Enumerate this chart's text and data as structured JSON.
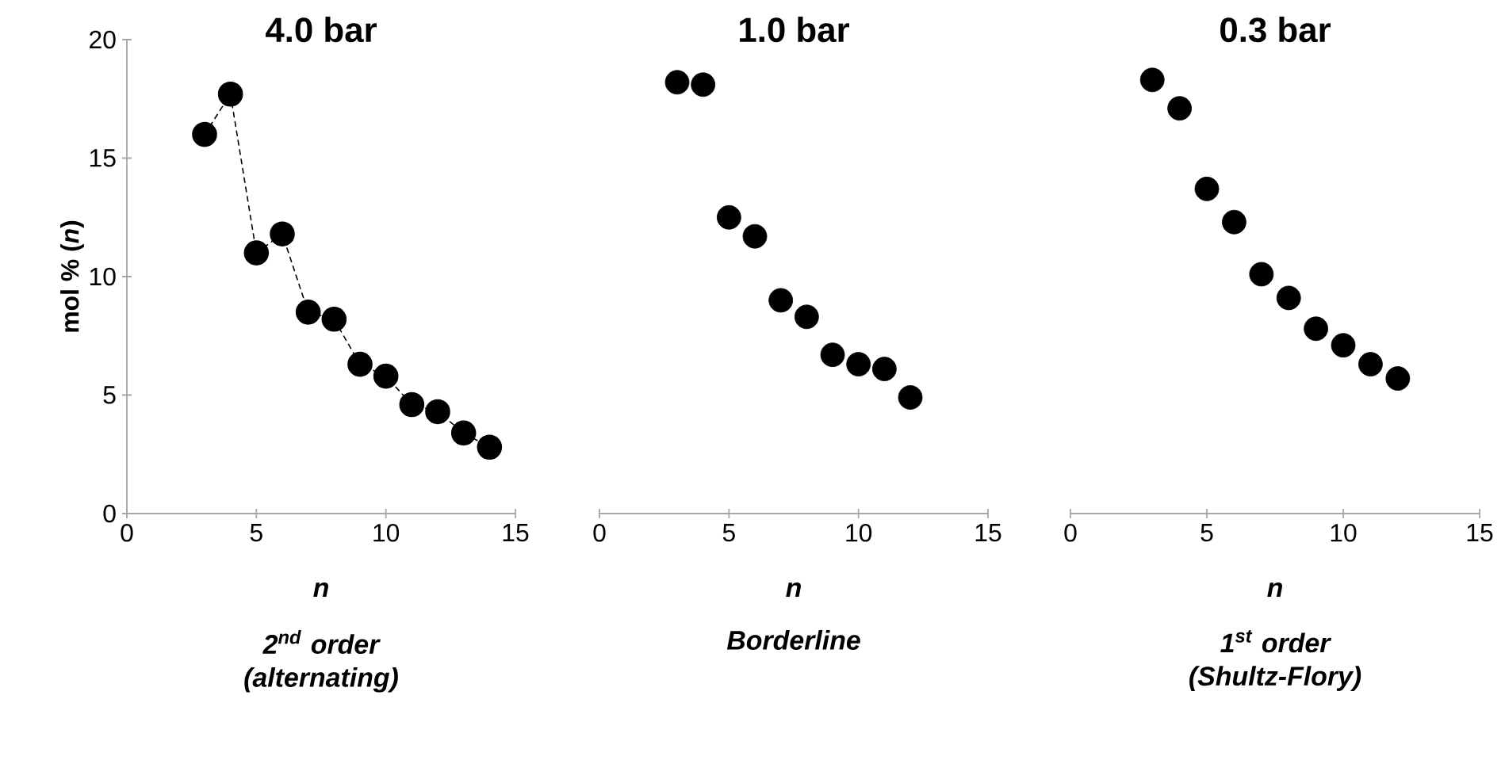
{
  "chart_data": [
    {
      "type": "line",
      "title": "4.0 bar",
      "xlabel": "n",
      "ylabel": "mol % (*n*)",
      "annotations": [
        "2$^{nd}$ order (alternating)"
      ],
      "x": [
        3,
        4,
        5,
        6,
        7,
        8,
        9,
        10,
        11,
        12,
        13,
        14
      ],
      "series": [
        {
          "color": "#000000",
          "values": [
            16.0,
            17.7,
            11.0,
            11.8,
            8.5,
            8.2,
            6.3,
            5.8,
            4.6,
            4.3,
            3.4,
            2.8
          ]
        }
      ],
      "xlim": [
        0,
        15
      ],
      "ylim": [
        0,
        20
      ],
      "xticks": [
        0,
        5,
        10,
        15
      ],
      "yticks": [
        0,
        5,
        10,
        15,
        20
      ],
      "marker": "circle",
      "line_style": "dashed"
    },
    {
      "type": "scatter",
      "title": "1.0 bar",
      "xlabel": "n",
      "annotations": [
        "Borderline"
      ],
      "x": [
        3,
        4,
        5,
        6,
        7,
        8,
        9,
        10,
        11,
        12
      ],
      "series": [
        {
          "color": "#000000",
          "values": [
            18.2,
            18.1,
            12.5,
            11.7,
            9.0,
            8.3,
            6.7,
            6.3,
            6.1,
            4.9
          ]
        }
      ],
      "xlim": [
        0,
        15
      ],
      "ylim": [
        0,
        20
      ],
      "xticks": [
        0,
        5,
        10,
        15
      ],
      "tick_labels": "x",
      "marker": "circle"
    },
    {
      "type": "scatter",
      "title": "0.3 bar",
      "xlabel": "n",
      "annotations": [
        "1$^{st}$ order (Shultz-Flory)"
      ],
      "x": [
        3,
        4,
        5,
        6,
        7,
        8,
        9,
        10,
        11,
        12
      ],
      "series": [
        {
          "color": "#000000",
          "values": [
            18.3,
            17.1,
            13.7,
            12.3,
            10.1,
            9.1,
            7.8,
            7.1,
            6.3,
            5.7
          ]
        }
      ],
      "xlim": [
        0,
        15
      ],
      "ylim": [
        0,
        20
      ],
      "xticks": [
        0,
        5,
        10,
        15
      ],
      "tick_labels": "x",
      "marker": "circle"
    }
  ]
}
